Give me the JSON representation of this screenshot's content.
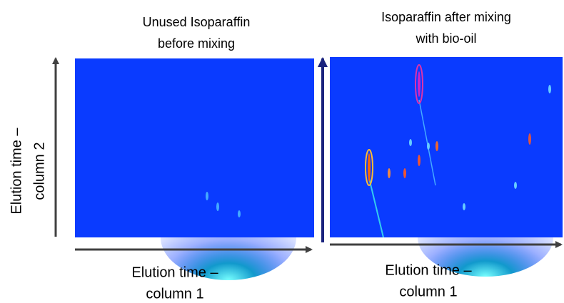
{
  "panels": [
    {
      "title": [
        "Unused Isoparaffin",
        "before mixing"
      ],
      "x_label": [
        "Elution time –",
        "column 1"
      ]
    },
    {
      "title": [
        "Isoparaffin after mixing",
        "with bio-oil"
      ],
      "x_label": [
        "Elution time –",
        "column 1"
      ]
    }
  ],
  "y_label": [
    "Elution time –",
    "column 2"
  ]
}
